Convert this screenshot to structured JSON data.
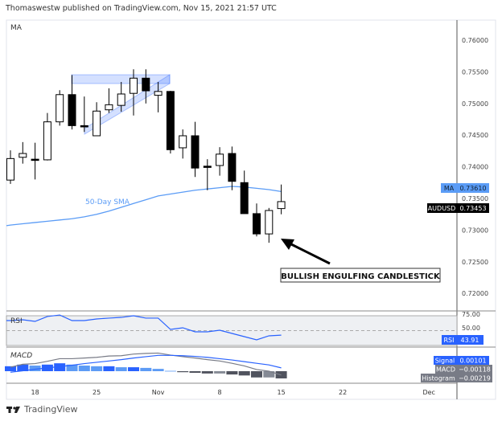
{
  "header": {
    "published": "Thomaswestw published on TradingView.com, Nov 15, 2021 21:57 UTC"
  },
  "main_pane": {
    "indicator_label": "MA",
    "sma_label": "50-Day SMA",
    "annotation": "BULLISH ENGULFING CANDLESTICK",
    "ma_tag": {
      "label": "MA",
      "value": "0.73610"
    },
    "symbol_tag": {
      "label": "AUDUSD",
      "value": "0.73453"
    },
    "price_ticks": [
      "0.76000",
      "0.75500",
      "0.75000",
      "0.74500",
      "0.74000",
      "0.73500",
      "0.73000",
      "0.72500",
      "0.72000"
    ]
  },
  "rsi_pane": {
    "label": "RSI",
    "tag_label": "RSI",
    "tag_value": "43.91",
    "ticks": [
      "75.00",
      "50.00"
    ]
  },
  "macd_pane": {
    "label": "MACD",
    "tags": [
      {
        "label": "Signal",
        "value": "0.00101"
      },
      {
        "label": "MACD",
        "value": "−0.00118"
      },
      {
        "label": "Histogram",
        "value": "−0.00219"
      }
    ]
  },
  "date_ticks": [
    {
      "label": "18",
      "index": 2
    },
    {
      "label": "25",
      "index": 7
    },
    {
      "label": "Nov",
      "index": 12
    },
    {
      "label": "8",
      "index": 17
    },
    {
      "label": "15",
      "index": 22
    },
    {
      "label": "22",
      "index": 27
    },
    {
      "label": "Dec",
      "index": 34
    }
  ],
  "footer": {
    "brand": "TradingView"
  },
  "colors": {
    "sma": "#5b9cf6",
    "accent": "#2962ff",
    "rsi": "#2962ff",
    "macd": "#787b86",
    "signal": "#2962ff",
    "bull": "#ffffff",
    "bear": "#000000"
  },
  "chart_data": {
    "type": "candlestick",
    "symbol": "AUDUSD",
    "dates": [
      "2021-10-14",
      "2021-10-15",
      "2021-10-18",
      "2021-10-19",
      "2021-10-20",
      "2021-10-21",
      "2021-10-22",
      "2021-10-25",
      "2021-10-26",
      "2021-10-27",
      "2021-10-28",
      "2021-10-29",
      "2021-11-01",
      "2021-11-02",
      "2021-11-03",
      "2021-11-04",
      "2021-11-05",
      "2021-11-08",
      "2021-11-09",
      "2021-11-10",
      "2021-11-11",
      "2021-11-12",
      "2021-11-15"
    ],
    "ohlc": [
      [
        0.7379,
        0.7426,
        0.7373,
        0.7413
      ],
      [
        0.7415,
        0.7439,
        0.7405,
        0.7421
      ],
      [
        0.7412,
        0.7438,
        0.738,
        0.7411
      ],
      [
        0.7411,
        0.7485,
        0.741,
        0.7471
      ],
      [
        0.7471,
        0.7521,
        0.7465,
        0.7514
      ],
      [
        0.7514,
        0.7545,
        0.7459,
        0.7465
      ],
      [
        0.7465,
        0.7511,
        0.7455,
        0.7463
      ],
      [
        0.7449,
        0.7502,
        0.7449,
        0.7488
      ],
      [
        0.749,
        0.7524,
        0.7485,
        0.7498
      ],
      [
        0.7497,
        0.7534,
        0.7487,
        0.7515
      ],
      [
        0.7516,
        0.7554,
        0.7481,
        0.754
      ],
      [
        0.754,
        0.7554,
        0.75,
        0.752
      ],
      [
        0.7513,
        0.7534,
        0.7486,
        0.7519
      ],
      [
        0.7519,
        0.752,
        0.7421,
        0.7427
      ],
      [
        0.743,
        0.7459,
        0.7413,
        0.7449
      ],
      [
        0.7449,
        0.7471,
        0.7384,
        0.7398
      ],
      [
        0.7401,
        0.7412,
        0.7363,
        0.7399
      ],
      [
        0.7402,
        0.7431,
        0.7386,
        0.742
      ],
      [
        0.7421,
        0.7432,
        0.7363,
        0.7377
      ],
      [
        0.7375,
        0.7394,
        0.7326,
        0.7326
      ],
      [
        0.7326,
        0.7342,
        0.729,
        0.7294
      ],
      [
        0.7294,
        0.7335,
        0.728,
        0.7331
      ],
      [
        0.7334,
        0.7372,
        0.7325,
        0.7345
      ]
    ],
    "sma50": [
      0.7308,
      0.731,
      0.7312,
      0.7314,
      0.7316,
      0.7318,
      0.7321,
      0.7325,
      0.733,
      0.7336,
      0.7342,
      0.7348,
      0.7354,
      0.7357,
      0.736,
      0.7363,
      0.7365,
      0.7367,
      0.7369,
      0.7368,
      0.7366,
      0.7364,
      0.7361
    ],
    "rsi": [
      63.5,
      64.6,
      62.4,
      69.0,
      71.0,
      63.5,
      63.5,
      65.7,
      66.8,
      67.8,
      70.0,
      66.8,
      66.8,
      51.6,
      53.8,
      48.4,
      48.4,
      50.5,
      46.2,
      41.9,
      37.6,
      43.0,
      43.91
    ],
    "macd": [
      0.0012,
      0.0021,
      0.0023,
      0.003,
      0.0038,
      0.0038,
      0.004,
      0.0042,
      0.0046,
      0.0047,
      0.0052,
      0.0054,
      0.0055,
      0.0049,
      0.0044,
      0.004,
      0.0035,
      0.0031,
      0.0024,
      0.0016,
      0.0005,
      0.0,
      -0.00118
    ],
    "signal": [
      -0.0003,
      0.0001,
      0.0006,
      0.001,
      0.0014,
      0.0018,
      0.0023,
      0.0027,
      0.0031,
      0.0035,
      0.004,
      0.0044,
      0.0048,
      0.0048,
      0.0047,
      0.0045,
      0.0042,
      0.0038,
      0.0034,
      0.0029,
      0.0024,
      0.0019,
      0.00101
    ],
    "histogram": [
      0.0015,
      0.002,
      0.0017,
      0.002,
      0.0024,
      0.002,
      0.0017,
      0.0015,
      0.0015,
      0.0012,
      0.0012,
      0.001,
      0.0007,
      0.0001,
      -0.0003,
      -0.0005,
      -0.0007,
      -0.0007,
      -0.001,
      -0.0013,
      -0.0019,
      -0.0019,
      -0.00219
    ],
    "ylim": [
      0.7175,
      0.763
    ],
    "rsi_band": [
      30,
      70
    ]
  }
}
